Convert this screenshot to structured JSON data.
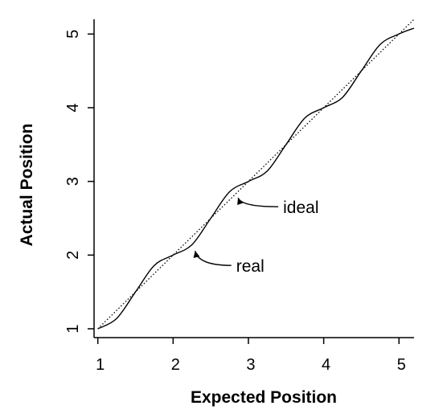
{
  "chart_data": {
    "type": "line",
    "title": "",
    "xlabel": "Expected Position",
    "ylabel": "Actual Position",
    "xlim": [
      0.95,
      5.2
    ],
    "ylim": [
      0.88,
      5.2
    ],
    "xticks": [
      "1",
      "2",
      "3",
      "4",
      "5"
    ],
    "yticks": [
      "1",
      "2",
      "3",
      "4",
      "5"
    ],
    "grid": false,
    "series": [
      {
        "name": "ideal",
        "style": "dotted",
        "x": [
          1,
          5.2
        ],
        "y": [
          1,
          5.2
        ]
      },
      {
        "name": "real",
        "style": "solid",
        "x": [
          1.0,
          1.25,
          1.5,
          1.75,
          2.0,
          2.25,
          2.5,
          2.75,
          3.0,
          3.25,
          3.5,
          3.75,
          4.0,
          4.25,
          4.5,
          4.75,
          5.0,
          5.2
        ],
        "y": [
          1.0,
          1.14,
          1.5,
          1.86,
          2.0,
          2.14,
          2.5,
          2.86,
          3.0,
          3.14,
          3.5,
          3.86,
          4.0,
          4.14,
          4.5,
          4.86,
          5.0,
          5.08
        ]
      }
    ],
    "annotations": [
      {
        "text": "ideal",
        "target": "ideal",
        "x": 2.82,
        "y": 2.82
      },
      {
        "text": "real",
        "target": "real",
        "x": 2.25,
        "y": 2.1
      }
    ]
  }
}
